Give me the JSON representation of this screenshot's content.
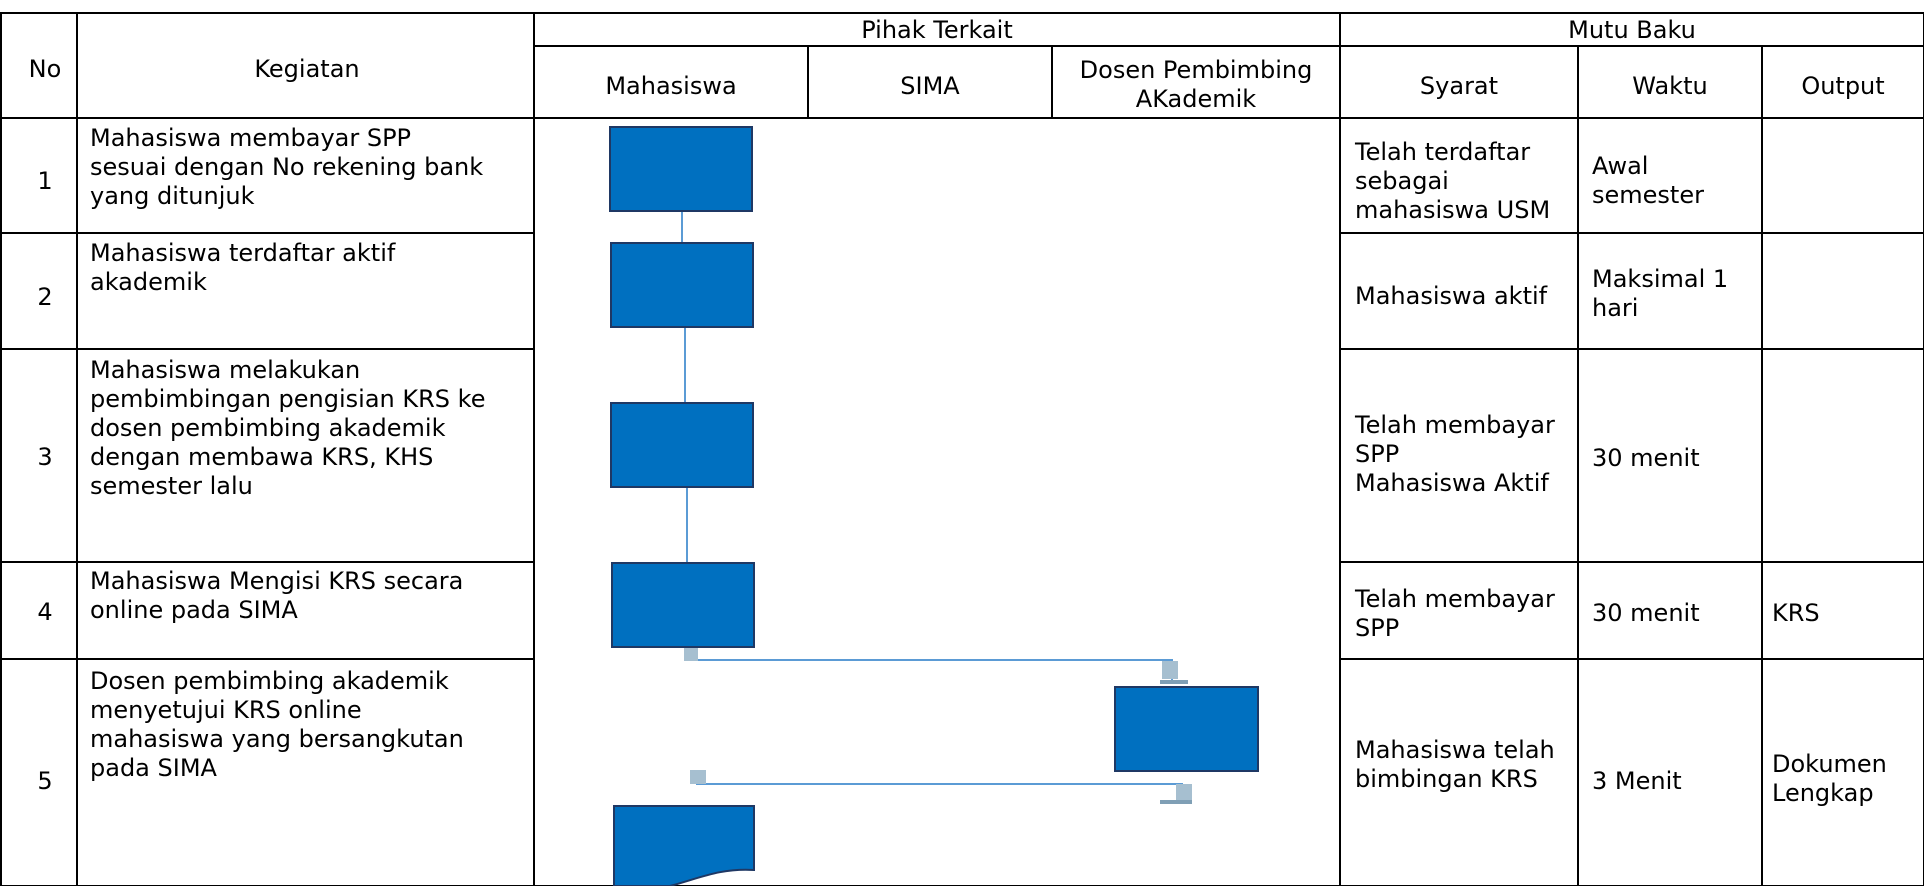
{
  "header": {
    "no": "No",
    "activity": "Kegiatan",
    "parties": "Pihak Terkait",
    "quality": "Mutu Baku",
    "student": "Mahasiswa",
    "sima": "SIMA",
    "advisor": "Dosen Pembimbing\nAKademik",
    "requirement": "Syarat",
    "time": "Waktu",
    "output": "Output"
  },
  "rows": [
    {
      "no": "1",
      "activity": "Mahasiswa membayar SPP\nsesuai dengan No rekening bank\nyang ditunjuk",
      "requirement": "Telah terdaftar\nsebagai\nmahasiswa USM",
      "time": "Awal\nsemester",
      "output": ""
    },
    {
      "no": "2",
      "activity": "Mahasiswa terdaftar aktif\nakademik",
      "requirement": "Mahasiswa aktif",
      "time": "Maksimal 1\nhari",
      "output": ""
    },
    {
      "no": "3",
      "activity": "Mahasiswa melakukan\npembimbingan pengisian KRS ke\ndosen pembimbing akademik\ndengan membawa KRS, KHS\nsemester lalu",
      "requirement": "Telah membayar\nSPP\nMahasiswa Aktif",
      "time": "30 menit",
      "output": ""
    },
    {
      "no": "4",
      "activity": "Mahasiswa Mengisi KRS secara\nonline pada SIMA",
      "requirement": "Telah membayar\nSPP",
      "time": "30 menit",
      "output": "KRS"
    },
    {
      "no": "5",
      "activity": "Dosen pembimbing akademik\nmenyetujui KRS online\nmahasiswa yang bersangkutan\npada SIMA",
      "requirement": "Mahasiswa telah\nbimbingan KRS",
      "time": "3 Menit",
      "output": "Dokumen\nLengkap"
    }
  ],
  "colors": {
    "process_fill": "#0070c0",
    "process_stroke": "#1f3864",
    "connector": "#5b9bd5",
    "connector_stub": "#a6bfd0",
    "grid": "#000000"
  }
}
